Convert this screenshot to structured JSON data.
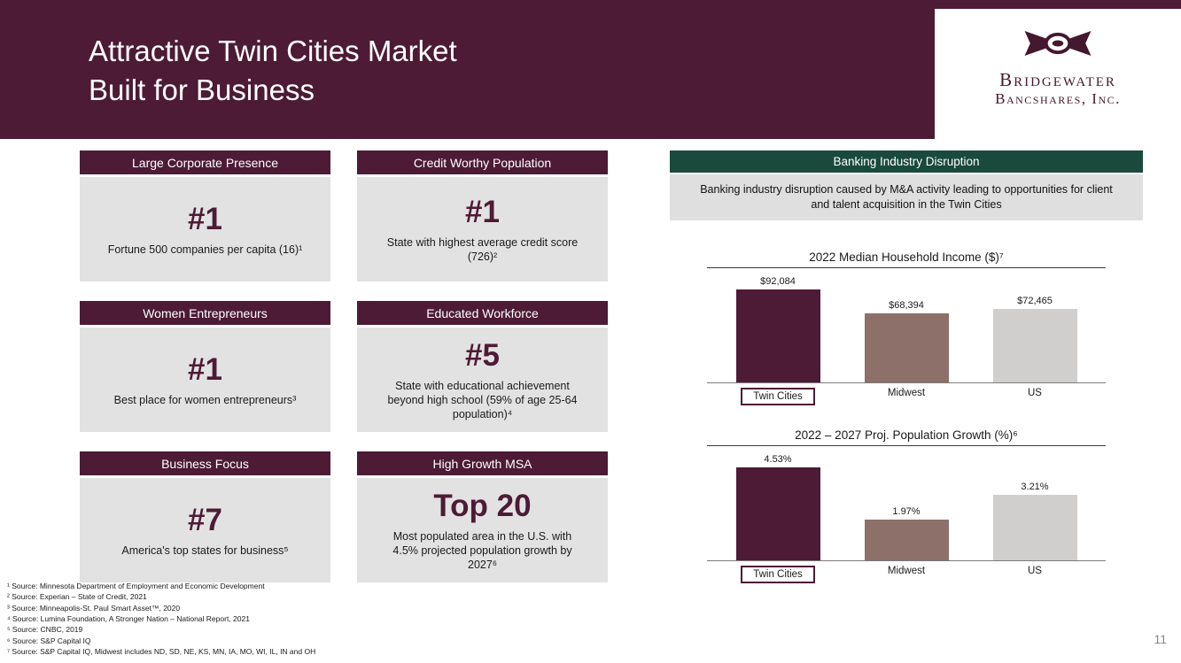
{
  "header": {
    "title": "Attractive Twin Cities Market\nBuilt for Business",
    "logo": {
      "name": "Bridgewater",
      "subname": "Bancshares, Inc."
    },
    "brand_color": "#4d1b36",
    "green_color": "#1a4a3c"
  },
  "cards": [
    {
      "title": "Large Corporate Presence",
      "stat": "#1",
      "desc": "Fortune 500 companies per capita (16)¹"
    },
    {
      "title": "Credit Worthy Population",
      "stat": "#1",
      "desc": "State with highest average credit score (726)²"
    },
    {
      "title": "Women Entrepreneurs",
      "stat": "#1",
      "desc": "Best place for women entrepreneurs³"
    },
    {
      "title": "Educated Workforce",
      "stat": "#5",
      "desc": "State with educational achievement beyond high school (59% of age 25-64 population)⁴"
    },
    {
      "title": "Business Focus",
      "stat": "#7",
      "desc": "America's top states for business⁵"
    },
    {
      "title": "High Growth MSA",
      "stat": "Top 20",
      "desc": "Most populated area in the U.S. with 4.5% projected population growth by 2027⁶"
    }
  ],
  "disruption": {
    "title": "Banking Industry Disruption",
    "body": "Banking industry disruption caused by M&A activity leading to opportunities for client and talent acquisition in the Twin Cities"
  },
  "chart_data": [
    {
      "type": "bar",
      "title": "2022 Median Household Income ($)⁷",
      "categories": [
        "Twin Cities",
        "Midwest",
        "US"
      ],
      "values": [
        92084,
        68394,
        72465
      ],
      "value_labels": [
        "$92,084",
        "$68,394",
        "$72,465"
      ],
      "colors": [
        "#4d1b36",
        "#8c7069",
        "#d1cfcd"
      ],
      "highlight_category": "Twin Cities",
      "xlabel": "",
      "ylabel": "",
      "ylim": [
        0,
        95000
      ],
      "grid": false,
      "legend": false
    },
    {
      "type": "bar",
      "title": "2022 – 2027 Proj. Population Growth (%)⁶",
      "categories": [
        "Twin Cities",
        "Midwest",
        "US"
      ],
      "values": [
        4.53,
        1.97,
        3.21
      ],
      "value_labels": [
        "4.53%",
        "1.97%",
        "3.21%"
      ],
      "colors": [
        "#4d1b36",
        "#8c7069",
        "#d1cfcd"
      ],
      "highlight_category": "Twin Cities",
      "xlabel": "",
      "ylabel": "",
      "ylim": [
        0,
        5
      ],
      "grid": false,
      "legend": false
    }
  ],
  "footnotes": [
    "¹ Source: Minnesota Department of Employment and Economic Development",
    "² Source: Experian – State of Credit, 2021",
    "³ Source: Minneapolis-St. Paul Smart Asset™, 2020",
    "⁴ Source: Lumina Foundation, A Stronger Nation – National Report, 2021",
    "⁵ Source: CNBC, 2019",
    "⁶ Source: S&P Capital IQ",
    "⁷ Source: S&P Capital IQ, Midwest includes ND, SD, NE, KS, MN, IA, MO, WI, IL, IN and OH"
  ],
  "page_number": "11"
}
